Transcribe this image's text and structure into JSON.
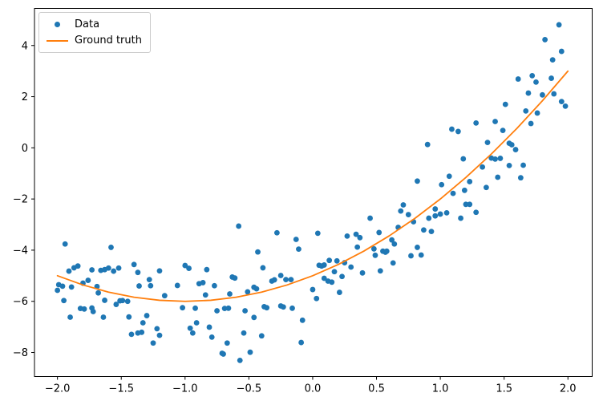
{
  "figure": {
    "background": "#ffffff",
    "axes_color": "#000000"
  },
  "legend": {
    "position": "upper left",
    "items": [
      {
        "label": "Data",
        "marker": "dot",
        "color": "#1f77b4"
      },
      {
        "label": "Ground truth",
        "marker": "line",
        "color": "#ff7f0e"
      }
    ]
  },
  "chart_data": {
    "type": "scatter",
    "title": "",
    "xlabel": "",
    "ylabel": "",
    "grid": false,
    "legend_position": "upper left",
    "xlim": [
      -2.18,
      2.19
    ],
    "ylim": [
      -8.94,
      5.45
    ],
    "xticks": [
      -2.0,
      -1.5,
      -1.0,
      -0.5,
      0.0,
      0.5,
      1.0,
      1.5,
      2.0
    ],
    "xtick_labels": [
      "−2.0",
      "−1.5",
      "−1.0",
      "−0.5",
      "0.0",
      "0.5",
      "1.0",
      "1.5",
      "2.0"
    ],
    "yticks": [
      4,
      2,
      0,
      -2,
      -4,
      -6,
      -8
    ],
    "ytick_labels": [
      "4",
      "2",
      "0",
      "−2",
      "−4",
      "−6",
      "−8"
    ],
    "series": [
      {
        "name": "Data",
        "type": "scatter",
        "color": "#1f77b4",
        "points": [
          [
            -1.94,
            -3.76
          ],
          [
            -1.58,
            -3.89
          ],
          [
            -1.91,
            -4.82
          ],
          [
            -1.87,
            -4.69
          ],
          [
            -1.84,
            -4.62
          ],
          [
            -1.73,
            -4.77
          ],
          [
            -1.66,
            -4.79
          ],
          [
            -1.63,
            -4.76
          ],
          [
            -1.6,
            -4.7
          ],
          [
            -1.56,
            -4.82
          ],
          [
            -1.52,
            -4.7
          ],
          [
            -1.4,
            -4.56
          ],
          [
            -1.37,
            -4.87
          ],
          [
            -1.2,
            -4.81
          ],
          [
            -1.28,
            -5.15
          ],
          [
            -1.27,
            -5.39
          ],
          [
            -1.99,
            -5.35
          ],
          [
            -1.96,
            -5.41
          ],
          [
            -2.0,
            -5.57
          ],
          [
            -1.95,
            -5.97
          ],
          [
            -1.89,
            -5.44
          ],
          [
            -1.8,
            -5.29
          ],
          [
            -1.76,
            -5.18
          ],
          [
            -1.69,
            -5.42
          ],
          [
            -1.68,
            -5.67
          ],
          [
            -1.63,
            -5.96
          ],
          [
            -1.54,
            -6.12
          ],
          [
            -1.51,
            -5.98
          ],
          [
            -1.49,
            -5.97
          ],
          [
            -1.45,
            -6.0
          ],
          [
            -1.36,
            -5.4
          ],
          [
            -1.16,
            -5.78
          ],
          [
            -1.82,
            -6.28
          ],
          [
            -1.79,
            -6.3
          ],
          [
            -1.73,
            -6.26
          ],
          [
            -1.72,
            -6.4
          ],
          [
            -1.9,
            -6.62
          ],
          [
            -1.64,
            -6.62
          ],
          [
            -1.44,
            -6.61
          ],
          [
            -1.42,
            -7.29
          ],
          [
            -1.37,
            -7.24
          ],
          [
            -1.34,
            -7.21
          ],
          [
            -1.33,
            -6.84
          ],
          [
            -1.3,
            -6.56
          ],
          [
            -1.22,
            -7.07
          ],
          [
            -1.25,
            -7.63
          ],
          [
            -1.2,
            -7.33
          ],
          [
            -0.28,
            -3.32
          ],
          [
            -0.13,
            -3.58
          ],
          [
            -0.11,
            -3.96
          ],
          [
            -0.43,
            -4.07
          ],
          [
            -0.39,
            -4.69
          ],
          [
            -1.0,
            -4.6
          ],
          [
            -0.97,
            -4.71
          ],
          [
            -0.83,
            -4.76
          ],
          [
            -0.89,
            -5.31
          ],
          [
            -0.86,
            -5.27
          ],
          [
            -0.77,
            -5.39
          ],
          [
            -0.63,
            -5.05
          ],
          [
            -0.61,
            -5.09
          ],
          [
            -1.06,
            -5.38
          ],
          [
            -0.84,
            -5.75
          ],
          [
            -0.65,
            -5.71
          ],
          [
            -0.51,
            -5.63
          ],
          [
            -0.46,
            -5.45
          ],
          [
            -0.44,
            -5.51
          ],
          [
            -0.32,
            -5.21
          ],
          [
            -0.3,
            -5.16
          ],
          [
            -0.25,
            -4.99
          ],
          [
            -0.21,
            -5.15
          ],
          [
            -0.17,
            -5.15
          ],
          [
            -0.38,
            -6.21
          ],
          [
            -0.36,
            -6.25
          ],
          [
            -1.02,
            -6.25
          ],
          [
            -0.92,
            -6.27
          ],
          [
            -0.75,
            -6.37
          ],
          [
            -0.69,
            -6.28
          ],
          [
            -0.66,
            -6.27
          ],
          [
            -0.53,
            -6.37
          ],
          [
            -0.46,
            -6.63
          ],
          [
            -0.25,
            -6.18
          ],
          [
            -0.23,
            -6.22
          ],
          [
            -0.16,
            -6.27
          ],
          [
            -0.96,
            -7.05
          ],
          [
            -0.94,
            -7.24
          ],
          [
            -0.91,
            -6.84
          ],
          [
            -0.81,
            -7.01
          ],
          [
            -0.79,
            -7.4
          ],
          [
            -0.67,
            -7.63
          ],
          [
            -0.54,
            -7.24
          ],
          [
            -0.57,
            -8.31
          ],
          [
            -0.71,
            -8.03
          ],
          [
            -0.7,
            -8.06
          ],
          [
            -0.49,
            -7.99
          ],
          [
            -0.4,
            -7.35
          ],
          [
            -0.08,
            -6.74
          ],
          [
            -0.09,
            -7.61
          ],
          [
            -0.58,
            -3.06
          ],
          [
            0.04,
            -3.34
          ],
          [
            0.27,
            -3.45
          ],
          [
            0.34,
            -3.38
          ],
          [
            0.37,
            -3.51
          ],
          [
            0.52,
            -3.31
          ],
          [
            0.62,
            -3.6
          ],
          [
            0.64,
            -3.76
          ],
          [
            0.87,
            -3.21
          ],
          [
            0.93,
            -3.27
          ],
          [
            0.35,
            -3.88
          ],
          [
            0.48,
            -3.95
          ],
          [
            0.49,
            -4.2
          ],
          [
            0.55,
            -4.04
          ],
          [
            0.57,
            -4.08
          ],
          [
            0.58,
            -4.04
          ],
          [
            0.63,
            -4.5
          ],
          [
            0.82,
            -3.89
          ],
          [
            0.85,
            -4.19
          ],
          [
            0.77,
            -4.22
          ],
          [
            0.13,
            -4.4
          ],
          [
            0.19,
            -4.42
          ],
          [
            0.25,
            -4.49
          ],
          [
            0.3,
            -4.66
          ],
          [
            0.05,
            -4.59
          ],
          [
            0.07,
            -4.62
          ],
          [
            0.09,
            -4.58
          ],
          [
            0.17,
            -4.84
          ],
          [
            0.23,
            -5.03
          ],
          [
            0.39,
            -4.89
          ],
          [
            0.53,
            -4.81
          ],
          [
            0.09,
            -5.1
          ],
          [
            0.12,
            -5.21
          ],
          [
            0.15,
            -5.25
          ],
          [
            0.21,
            -5.65
          ],
          [
            0.0,
            -5.54
          ],
          [
            0.03,
            -5.89
          ],
          [
            0.45,
            -2.75
          ],
          [
            0.67,
            -3.11
          ],
          [
            0.9,
            0.13
          ],
          [
            0.82,
            -1.3
          ],
          [
            1.07,
            -1.11
          ],
          [
            1.01,
            -1.44
          ],
          [
            0.71,
            -2.23
          ],
          [
            0.69,
            -2.47
          ],
          [
            0.75,
            -2.61
          ],
          [
            0.96,
            -2.39
          ],
          [
            0.96,
            -2.66
          ],
          [
            1.0,
            -2.59
          ],
          [
            1.05,
            -2.54
          ],
          [
            0.91,
            -2.75
          ],
          [
            0.79,
            -2.89
          ],
          [
            1.93,
            4.81
          ],
          [
            1.82,
            4.23
          ],
          [
            1.95,
            3.77
          ],
          [
            1.88,
            3.44
          ],
          [
            1.61,
            2.69
          ],
          [
            1.72,
            2.82
          ],
          [
            1.75,
            2.57
          ],
          [
            1.87,
            2.72
          ],
          [
            1.69,
            2.14
          ],
          [
            1.8,
            2.07
          ],
          [
            1.89,
            2.11
          ],
          [
            1.51,
            1.7
          ],
          [
            1.67,
            1.44
          ],
          [
            1.76,
            1.36
          ],
          [
            1.95,
            1.81
          ],
          [
            1.98,
            1.63
          ],
          [
            1.28,
            0.97
          ],
          [
            1.43,
            1.03
          ],
          [
            1.49,
            0.68
          ],
          [
            1.14,
            0.64
          ],
          [
            1.09,
            0.73
          ],
          [
            1.71,
            0.95
          ],
          [
            1.37,
            0.21
          ],
          [
            1.54,
            0.18
          ],
          [
            1.56,
            0.12
          ],
          [
            1.59,
            -0.07
          ],
          [
            1.4,
            -0.4
          ],
          [
            1.43,
            -0.44
          ],
          [
            1.47,
            -0.41
          ],
          [
            1.18,
            -0.43
          ],
          [
            1.33,
            -0.75
          ],
          [
            1.54,
            -0.69
          ],
          [
            1.65,
            -0.68
          ],
          [
            1.45,
            -1.15
          ],
          [
            1.63,
            -1.17
          ],
          [
            1.23,
            -1.32
          ],
          [
            1.36,
            -1.55
          ],
          [
            1.19,
            -1.66
          ],
          [
            1.1,
            -1.78
          ],
          [
            1.2,
            -2.21
          ],
          [
            1.23,
            -2.21
          ],
          [
            1.28,
            -2.52
          ],
          [
            1.16,
            -2.75
          ]
        ]
      },
      {
        "name": "Ground truth",
        "type": "line",
        "color": "#ff7f0e",
        "x": [
          -2.0,
          -1.8,
          -1.6,
          -1.4,
          -1.2,
          -1.0,
          -0.8,
          -0.6,
          -0.4,
          -0.2,
          0.0,
          0.2,
          0.4,
          0.6,
          0.8,
          1.0,
          1.2,
          1.4,
          1.6,
          1.8,
          2.0
        ],
        "y": [
          -5.0,
          -5.36,
          -5.64,
          -5.84,
          -5.96,
          -6.0,
          -5.96,
          -5.84,
          -5.64,
          -5.36,
          -5.0,
          -4.56,
          -4.04,
          -3.44,
          -2.76,
          -2.0,
          -1.16,
          -0.24,
          0.76,
          1.84,
          3.0
        ]
      }
    ]
  }
}
